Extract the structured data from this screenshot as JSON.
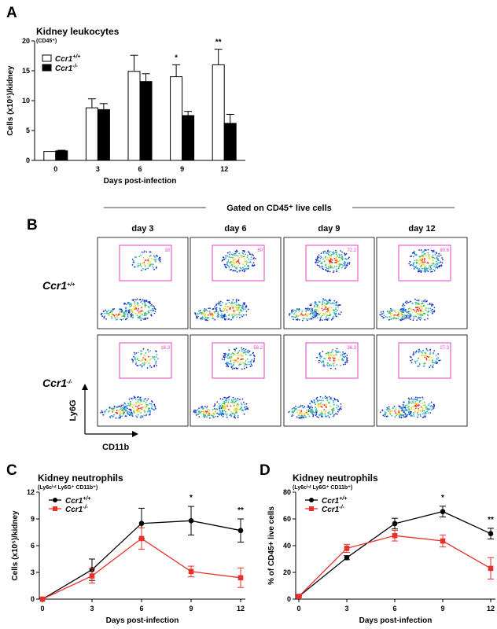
{
  "panels": [
    {
      "label": "A",
      "chart_data": {
        "type": "bar",
        "title": "Kidney leukocytes",
        "subtitle": "(CD45⁺)",
        "xlabel": "Days post-infection",
        "ylabel": "Cells (x10⁵)/kidney",
        "categories": [
          "0",
          "3",
          "6",
          "9",
          "12"
        ],
        "ylim": [
          0,
          20
        ],
        "yticks": [
          "0",
          "5",
          "10",
          "15",
          "20"
        ],
        "legend_position": "top-left",
        "series": [
          {
            "name": "Ccr1+/+",
            "fill": "#ffffff",
            "values": [
              1.5,
              8.8,
              14.9,
              14.0,
              16.0
            ],
            "errors": [
              0,
              1.5,
              2.7,
              2.0,
              2.6
            ]
          },
          {
            "name": "Ccr1-/-",
            "fill": "#000000",
            "values": [
              1.6,
              8.5,
              13.2,
              7.5,
              6.2
            ],
            "errors": [
              0.1,
              1.0,
              1.3,
              0.7,
              1.5
            ]
          }
        ],
        "significance": [
          {
            "category": "9",
            "mark": "*"
          },
          {
            "category": "12",
            "mark": "**"
          }
        ]
      }
    },
    {
      "label": "B",
      "header": "Gated on CD45⁺ live cells",
      "columns": [
        "day 3",
        "day 6",
        "day 9",
        "day 12"
      ],
      "rows": [
        {
          "name": "Ccr1+/+",
          "gate_values": [
            "18",
            "60",
            "72.2",
            "80.6"
          ]
        },
        {
          "name": "Ccr1-/-",
          "gate_values": [
            "18.3",
            "58.2",
            "36.3",
            "27.3"
          ]
        }
      ],
      "y_axis_label": "Ly6G",
      "x_axis_label": "CD11b"
    },
    {
      "label": "C",
      "chart_data": {
        "type": "line",
        "title": "Kidney neutrophils",
        "subtitle": "(Ly6cⁱⁿᵗ Ly6G⁺ CD11b⁺)",
        "xlabel": "Days post-infection",
        "ylabel": "Cells (x10⁵)/kidney",
        "x": [
          0,
          3,
          6,
          9,
          12
        ],
        "xticks": [
          "0",
          "3",
          "6",
          "9",
          "12"
        ],
        "ylim": [
          0,
          12
        ],
        "yticks": [
          "0",
          "3",
          "6",
          "9",
          "12"
        ],
        "legend_position": "top-left",
        "series": [
          {
            "name": "Ccr1+/+",
            "color": "#000000",
            "marker": "circle",
            "values": [
              0,
              3.3,
              8.5,
              8.8,
              7.7
            ],
            "errors": [
              0,
              1.2,
              1.7,
              1.6,
              1.3
            ]
          },
          {
            "name": "Ccr1-/-",
            "color": "#e8302a",
            "marker": "square",
            "values": [
              0,
              2.6,
              6.8,
              3.1,
              2.4
            ],
            "errors": [
              0,
              0.8,
              1.2,
              0.6,
              1.1
            ]
          }
        ],
        "significance": [
          {
            "x": 9,
            "mark": "*"
          },
          {
            "x": 12,
            "mark": "**"
          }
        ]
      }
    },
    {
      "label": "D",
      "chart_data": {
        "type": "line",
        "title": "Kidney neutrophils",
        "subtitle": "(Ly6cⁱⁿᵗ Ly6G⁺ CD11b⁺)",
        "xlabel": "Days post-infection",
        "ylabel": "% of CD45+ live cells",
        "x": [
          0,
          3,
          6,
          9,
          12
        ],
        "xticks": [
          "0",
          "3",
          "6",
          "9",
          "12"
        ],
        "ylim": [
          0,
          80
        ],
        "yticks": [
          "0",
          "20",
          "40",
          "60",
          "80"
        ],
        "legend_position": "top-left",
        "series": [
          {
            "name": "Ccr1+/+",
            "color": "#000000",
            "marker": "circle",
            "values": [
              2,
              31,
              56.5,
              65.5,
              49
            ],
            "errors": [
              0.5,
              1.5,
              4,
              4,
              4
            ]
          },
          {
            "name": "Ccr1-/-",
            "color": "#e8302a",
            "marker": "square",
            "values": [
              2,
              38,
              47.5,
              43.5,
              23
            ],
            "errors": [
              0.5,
              3,
              4,
              4.5,
              8
            ]
          }
        ],
        "significance": [
          {
            "x": 9,
            "mark": "*"
          },
          {
            "x": 12,
            "mark": "**"
          }
        ]
      }
    }
  ]
}
